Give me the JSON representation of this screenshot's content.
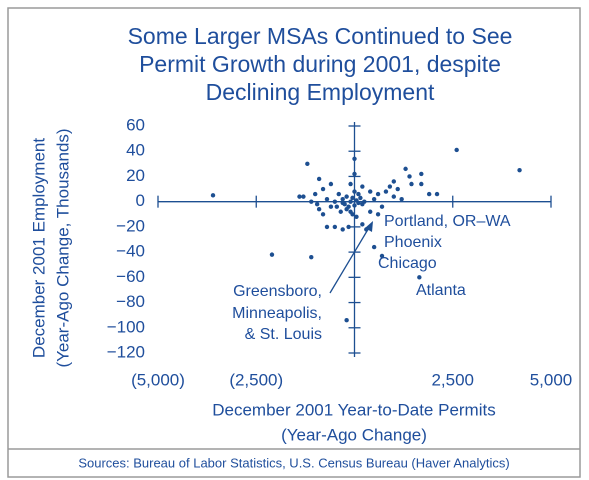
{
  "chart_data": {
    "type": "scatter",
    "title": [
      "Some Larger MSAs Continued to See",
      "Permit Growth during 2001, despite",
      "Declining Employment"
    ],
    "x_label": [
      "December 2001 Year-to-Date Permits",
      "(Year-Ago Change)"
    ],
    "y_label": [
      "December 2001 Employment",
      "(Year-Ago Change, Thousands)"
    ],
    "source": "Sources: Bureau of Labor Statistics, U.S. Census Bureau (Haver Analytics)",
    "annotations": [
      "Portland, OR–WA",
      "Phoenix",
      "Chicago",
      "Atlanta",
      "Greensboro,",
      "Minneapolis,",
      "& St. Louis"
    ],
    "color": "#1d4f91",
    "xlim": [
      -5000,
      5000
    ],
    "ylim": [
      -120,
      60
    ],
    "xticks": [
      {
        "value": -5000,
        "label": "(5,000)"
      },
      {
        "value": -2500,
        "label": "(2,500)"
      },
      {
        "value": 2500,
        "label": "2,500"
      },
      {
        "value": 5000,
        "label": "5,000"
      }
    ],
    "yticks": [
      60,
      40,
      20,
      0,
      {
        "value": -20,
        "label": "−20"
      },
      {
        "value": -40,
        "label": "−40"
      },
      {
        "value": -60,
        "label": "−60"
      },
      {
        "value": -80,
        "label": "−80"
      },
      {
        "value": -100,
        "label": "−100"
      },
      {
        "value": -120,
        "label": "−120"
      }
    ],
    "x": [
      -3600,
      -2100,
      -1100,
      -1200,
      -900,
      -1400,
      -1300,
      -1000,
      -950,
      -900,
      -800,
      -700,
      -600,
      -500,
      -450,
      -400,
      -350,
      -300,
      -250,
      -200,
      -150,
      -100,
      -50,
      0,
      50,
      100,
      150,
      200,
      250,
      -300,
      -200,
      -100,
      0,
      100,
      -50,
      50,
      -600,
      -700,
      -500,
      -300,
      -150,
      200,
      300,
      500,
      700,
      1650,
      -200,
      0,
      0,
      -100,
      200,
      400,
      500,
      600,
      700,
      800,
      900,
      1000,
      1100,
      1200,
      1300,
      1400,
      1450,
      1700,
      1700,
      1900,
      2100,
      2600,
      4200,
      1000,
      600,
      400,
      -800,
      -1100
    ],
    "values": [
      5,
      -42,
      -44,
      30,
      18,
      4,
      4,
      6,
      -2,
      -6,
      10,
      2,
      14,
      0,
      -4,
      6,
      -8,
      2,
      -2,
      4,
      -4,
      0,
      3,
      -3,
      1,
      -1,
      3,
      -2,
      0,
      -1,
      -6,
      -8,
      8,
      6,
      -10,
      -12,
      -4,
      -20,
      -20,
      -22,
      -20,
      -18,
      -22,
      -36,
      -43,
      -60,
      -94,
      34,
      22,
      14,
      12,
      8,
      2,
      6,
      -4,
      8,
      12,
      4,
      10,
      2,
      26,
      20,
      14,
      22,
      14,
      6,
      6,
      41,
      25,
      16,
      -10,
      -8,
      -10,
      0
    ]
  }
}
